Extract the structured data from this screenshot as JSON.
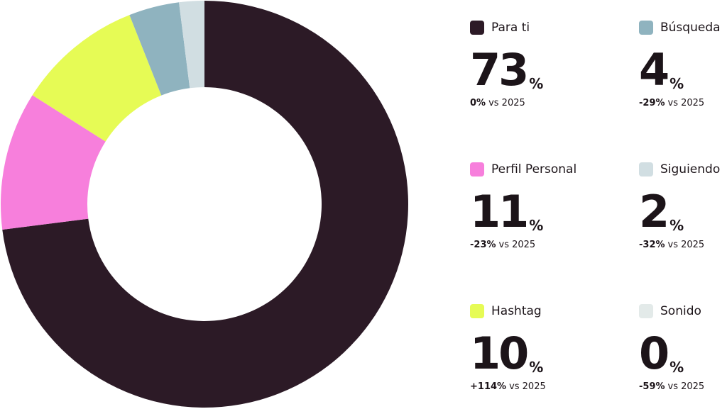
{
  "chart_data": {
    "type": "donut",
    "categories": [
      "Para ti",
      "Perfil Personal",
      "Hashtag",
      "Búsqueda",
      "Siguiendo",
      "Sonido"
    ],
    "values": [
      73,
      11,
      10,
      4,
      2,
      0
    ],
    "unit": "%",
    "colors": [
      "#2c1a26",
      "#f77fdc",
      "#e6fb55",
      "#8fb3bf",
      "#d1dee2",
      "#e3eae9"
    ],
    "changes": [
      "0%",
      "-23%",
      "+114%",
      "-29%",
      "-32%",
      "-59%"
    ],
    "comparison": "vs 2025"
  }
}
